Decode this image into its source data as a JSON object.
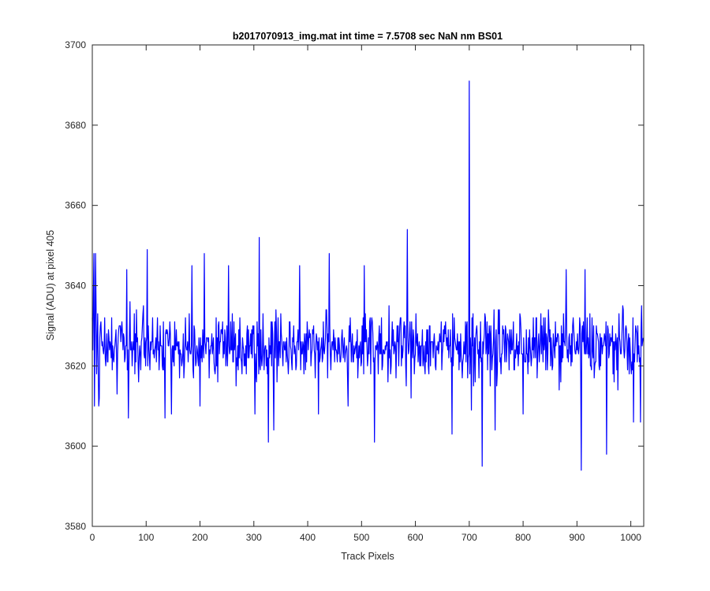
{
  "chart_data": {
    "type": "line",
    "title": "b2017070913_img.mat int time = 7.5708 sec  NaN nm BS01",
    "xlabel": "Track Pixels",
    "ylabel": "Signal (ADU) at pixel 405",
    "xlim": [
      0,
      1024
    ],
    "ylim": [
      3580,
      3700
    ],
    "xticks": [
      0,
      100,
      200,
      300,
      400,
      500,
      600,
      700,
      800,
      900,
      1000
    ],
    "yticks": [
      3580,
      3600,
      3620,
      3640,
      3660,
      3680,
      3700
    ],
    "grid": false,
    "line_color": "#0000ff",
    "series": [
      {
        "y_first_points": [
          3632,
          3624,
          3638,
          3648,
          3610,
          3628,
          3621,
          3635,
          3618,
          3626,
          3633,
          3619,
          3640,
          3612,
          3627
        ],
        "mean": 3625,
        "noise_halfrange": 12,
        "n_points": 1024,
        "spikes": [
          {
            "x": 6,
            "y": 3648
          },
          {
            "x": 12,
            "y": 3610
          },
          {
            "x": 46,
            "y": 3613
          },
          {
            "x": 64,
            "y": 3644
          },
          {
            "x": 67,
            "y": 3607
          },
          {
            "x": 102,
            "y": 3649
          },
          {
            "x": 135,
            "y": 3607
          },
          {
            "x": 147,
            "y": 3608
          },
          {
            "x": 185,
            "y": 3645
          },
          {
            "x": 200,
            "y": 3610
          },
          {
            "x": 208,
            "y": 3648
          },
          {
            "x": 253,
            "y": 3645
          },
          {
            "x": 302,
            "y": 3608
          },
          {
            "x": 310,
            "y": 3652
          },
          {
            "x": 327,
            "y": 3601
          },
          {
            "x": 337,
            "y": 3604
          },
          {
            "x": 385,
            "y": 3645
          },
          {
            "x": 420,
            "y": 3608
          },
          {
            "x": 440,
            "y": 3648
          },
          {
            "x": 475,
            "y": 3610
          },
          {
            "x": 505,
            "y": 3645
          },
          {
            "x": 524,
            "y": 3601
          },
          {
            "x": 585,
            "y": 3654
          },
          {
            "x": 592,
            "y": 3612
          },
          {
            "x": 668,
            "y": 3603
          },
          {
            "x": 700,
            "y": 3691
          },
          {
            "x": 704,
            "y": 3609
          },
          {
            "x": 724,
            "y": 3595
          },
          {
            "x": 748,
            "y": 3604
          },
          {
            "x": 800,
            "y": 3608
          },
          {
            "x": 880,
            "y": 3644
          },
          {
            "x": 908,
            "y": 3594
          },
          {
            "x": 915,
            "y": 3644
          },
          {
            "x": 955,
            "y": 3598
          },
          {
            "x": 1005,
            "y": 3606
          },
          {
            "x": 1018,
            "y": 3606
          }
        ]
      }
    ]
  }
}
